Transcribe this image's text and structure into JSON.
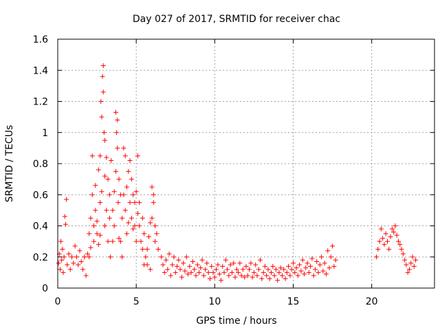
{
  "chart_data": {
    "type": "scatter",
    "title": "Day 027 of 2017, SRMTID for receiver chac",
    "xlabel": "GPS time / hours",
    "ylabel": "SRMTID / TECUs",
    "xlim": [
      0,
      24
    ],
    "ylim": [
      0,
      1.6
    ],
    "grid": true,
    "marker": "+",
    "color": "#ff0000",
    "xticks": [
      0,
      5,
      10,
      15,
      20
    ],
    "yticks": [
      0,
      0.2,
      0.4,
      0.6,
      0.8,
      1,
      1.2,
      1.4,
      1.6
    ],
    "xtick_labels": [
      "0",
      "5",
      "10",
      "15",
      "20"
    ],
    "ytick_labels": [
      "0",
      "0.2",
      "0.4",
      "0.6",
      "0.8",
      "1",
      "1.2",
      "1.4",
      "1.6"
    ],
    "series": [
      {
        "name": "SRMTID",
        "points": [
          [
            0.05,
            0.16
          ],
          [
            0.1,
            0.22
          ],
          [
            0.15,
            0.12
          ],
          [
            0.2,
            0.3
          ],
          [
            0.25,
            0.18
          ],
          [
            0.3,
            0.25
          ],
          [
            0.35,
            0.1
          ],
          [
            0.4,
            0.2
          ],
          [
            0.45,
            0.46
          ],
          [
            0.5,
            0.41
          ],
          [
            0.55,
            0.57
          ],
          [
            0.6,
            0.15
          ],
          [
            0.7,
            0.22
          ],
          [
            0.8,
            0.12
          ],
          [
            0.9,
            0.2
          ],
          [
            1.0,
            0.16
          ],
          [
            1.1,
            0.27
          ],
          [
            1.2,
            0.2
          ],
          [
            1.3,
            0.15
          ],
          [
            1.4,
            0.24
          ],
          [
            1.5,
            0.17
          ],
          [
            1.6,
            0.12
          ],
          [
            1.7,
            0.2
          ],
          [
            1.8,
            0.08
          ],
          [
            1.9,
            0.22
          ],
          [
            2.0,
            0.2
          ],
          [
            2.0,
            0.35
          ],
          [
            2.1,
            0.45
          ],
          [
            2.1,
            0.26
          ],
          [
            2.2,
            0.6
          ],
          [
            2.2,
            0.85
          ],
          [
            2.3,
            0.4
          ],
          [
            2.3,
            0.3
          ],
          [
            2.4,
            0.5
          ],
          [
            2.4,
            0.66
          ],
          [
            2.5,
            0.35
          ],
          [
            2.5,
            0.43
          ],
          [
            2.6,
            0.76
          ],
          [
            2.6,
            0.28
          ],
          [
            2.7,
            0.85
          ],
          [
            2.7,
            0.55
          ],
          [
            2.7,
            0.34
          ],
          [
            2.75,
            1.2
          ],
          [
            2.8,
            1.1
          ],
          [
            2.8,
            0.62
          ],
          [
            2.85,
            1.36
          ],
          [
            2.9,
            1.43
          ],
          [
            2.9,
            1.26
          ],
          [
            2.95,
            1.0
          ],
          [
            3.0,
            0.95
          ],
          [
            3.0,
            0.72
          ],
          [
            3.0,
            0.4
          ],
          [
            3.1,
            0.84
          ],
          [
            3.1,
            0.5
          ],
          [
            3.2,
            0.7
          ],
          [
            3.2,
            0.3
          ],
          [
            3.3,
            0.45
          ],
          [
            3.3,
            0.6
          ],
          [
            3.35,
            0.2
          ],
          [
            3.4,
            0.82
          ],
          [
            3.5,
            0.5
          ],
          [
            3.5,
            0.3
          ],
          [
            3.6,
            0.62
          ],
          [
            3.6,
            0.4
          ],
          [
            3.7,
            1.13
          ],
          [
            3.7,
            0.75
          ],
          [
            3.75,
            1.0
          ],
          [
            3.8,
            1.08
          ],
          [
            3.8,
            0.9
          ],
          [
            3.85,
            0.55
          ],
          [
            3.9,
            0.7
          ],
          [
            3.9,
            0.32
          ],
          [
            4.0,
            0.3
          ],
          [
            4.0,
            0.6
          ],
          [
            4.1,
            0.45
          ],
          [
            4.1,
            0.2
          ],
          [
            4.2,
            0.6
          ],
          [
            4.2,
            0.9
          ],
          [
            4.3,
            0.85
          ],
          [
            4.3,
            0.5
          ],
          [
            4.4,
            0.65
          ],
          [
            4.4,
            0.35
          ],
          [
            4.5,
            0.75
          ],
          [
            4.5,
            0.42
          ],
          [
            4.6,
            0.82
          ],
          [
            4.6,
            0.55
          ],
          [
            4.7,
            0.7
          ],
          [
            4.7,
            0.45
          ],
          [
            4.8,
            0.38
          ],
          [
            4.8,
            0.6
          ],
          [
            4.9,
            0.55
          ],
          [
            4.9,
            0.4
          ],
          [
            5.0,
            0.3
          ],
          [
            5.0,
            0.62
          ],
          [
            5.1,
            0.48
          ],
          [
            5.1,
            0.85
          ],
          [
            5.2,
            0.4
          ],
          [
            5.2,
            0.55
          ],
          [
            5.3,
            0.3
          ],
          [
            5.4,
            0.45
          ],
          [
            5.4,
            0.25
          ],
          [
            5.5,
            0.35
          ],
          [
            5.5,
            0.15
          ],
          [
            5.6,
            0.2
          ],
          [
            5.7,
            0.25
          ],
          [
            5.7,
            0.15
          ],
          [
            5.8,
            0.33
          ],
          [
            5.9,
            0.12
          ],
          [
            5.9,
            0.42
          ],
          [
            6.0,
            0.45
          ],
          [
            6.0,
            0.65
          ],
          [
            6.1,
            0.55
          ],
          [
            6.1,
            0.6
          ],
          [
            6.2,
            0.4
          ],
          [
            6.2,
            0.3
          ],
          [
            6.3,
            0.35
          ],
          [
            6.4,
            0.25
          ],
          [
            6.6,
            0.2
          ],
          [
            6.7,
            0.15
          ],
          [
            6.8,
            0.1
          ],
          [
            6.9,
            0.18
          ],
          [
            7.0,
            0.12
          ],
          [
            7.1,
            0.22
          ],
          [
            7.2,
            0.08
          ],
          [
            7.3,
            0.15
          ],
          [
            7.4,
            0.2
          ],
          [
            7.5,
            0.1
          ],
          [
            7.6,
            0.14
          ],
          [
            7.7,
            0.18
          ],
          [
            7.8,
            0.12
          ],
          [
            7.9,
            0.07
          ],
          [
            8.0,
            0.16
          ],
          [
            8.1,
            0.11
          ],
          [
            8.2,
            0.2
          ],
          [
            8.3,
            0.09
          ],
          [
            8.4,
            0.14
          ],
          [
            8.5,
            0.1
          ],
          [
            8.6,
            0.17
          ],
          [
            8.7,
            0.12
          ],
          [
            8.8,
            0.08
          ],
          [
            8.9,
            0.15
          ],
          [
            9.0,
            0.1
          ],
          [
            9.1,
            0.13
          ],
          [
            9.2,
            0.18
          ],
          [
            9.3,
            0.08
          ],
          [
            9.4,
            0.12
          ],
          [
            9.5,
            0.16
          ],
          [
            9.6,
            0.1
          ],
          [
            9.7,
            0.06
          ],
          [
            9.8,
            0.14
          ],
          [
            9.9,
            0.1
          ],
          [
            10.0,
            0.07
          ],
          [
            10.1,
            0.12
          ],
          [
            10.2,
            0.15
          ],
          [
            10.3,
            0.09
          ],
          [
            10.4,
            0.05
          ],
          [
            10.5,
            0.14
          ],
          [
            10.6,
            0.1
          ],
          [
            10.7,
            0.18
          ],
          [
            10.8,
            0.12
          ],
          [
            10.9,
            0.08
          ],
          [
            11.0,
            0.15
          ],
          [
            11.1,
            0.1
          ],
          [
            11.2,
            0.16
          ],
          [
            11.3,
            0.07
          ],
          [
            11.4,
            0.12
          ],
          [
            11.5,
            0.1
          ],
          [
            11.6,
            0.16
          ],
          [
            11.7,
            0.08
          ],
          [
            11.8,
            0.12
          ],
          [
            11.9,
            0.07
          ],
          [
            12.0,
            0.14
          ],
          [
            12.1,
            0.08
          ],
          [
            12.2,
            0.12
          ],
          [
            12.3,
            0.16
          ],
          [
            12.4,
            0.07
          ],
          [
            12.5,
            0.1
          ],
          [
            12.6,
            0.15
          ],
          [
            12.7,
            0.08
          ],
          [
            12.8,
            0.12
          ],
          [
            12.9,
            0.18
          ],
          [
            13.0,
            0.06
          ],
          [
            13.1,
            0.1
          ],
          [
            13.2,
            0.14
          ],
          [
            13.3,
            0.08
          ],
          [
            13.4,
            0.12
          ],
          [
            13.5,
            0.06
          ],
          [
            13.6,
            0.1
          ],
          [
            13.7,
            0.14
          ],
          [
            13.8,
            0.08
          ],
          [
            13.9,
            0.12
          ],
          [
            14.0,
            0.05
          ],
          [
            14.1,
            0.1
          ],
          [
            14.2,
            0.13
          ],
          [
            14.3,
            0.08
          ],
          [
            14.4,
            0.12
          ],
          [
            14.5,
            0.06
          ],
          [
            14.6,
            0.1
          ],
          [
            14.7,
            0.14
          ],
          [
            14.8,
            0.08
          ],
          [
            14.9,
            0.12
          ],
          [
            15.0,
            0.16
          ],
          [
            15.1,
            0.1
          ],
          [
            15.2,
            0.13
          ],
          [
            15.3,
            0.08
          ],
          [
            15.4,
            0.15
          ],
          [
            15.5,
            0.11
          ],
          [
            15.6,
            0.18
          ],
          [
            15.7,
            0.09
          ],
          [
            15.8,
            0.13
          ],
          [
            15.9,
            0.16
          ],
          [
            16.0,
            0.1
          ],
          [
            16.1,
            0.14
          ],
          [
            16.2,
            0.19
          ],
          [
            16.3,
            0.08
          ],
          [
            16.4,
            0.12
          ],
          [
            16.5,
            0.17
          ],
          [
            16.6,
            0.1
          ],
          [
            16.7,
            0.15
          ],
          [
            16.8,
            0.2
          ],
          [
            16.9,
            0.11
          ],
          [
            17.0,
            0.16
          ],
          [
            17.1,
            0.09
          ],
          [
            17.2,
            0.24
          ],
          [
            17.3,
            0.13
          ],
          [
            17.4,
            0.2
          ],
          [
            17.5,
            0.27
          ],
          [
            17.6,
            0.14
          ],
          [
            17.7,
            0.18
          ],
          [
            20.3,
            0.2
          ],
          [
            20.4,
            0.25
          ],
          [
            20.5,
            0.3
          ],
          [
            20.6,
            0.38
          ],
          [
            20.7,
            0.32
          ],
          [
            20.8,
            0.28
          ],
          [
            20.9,
            0.35
          ],
          [
            21.0,
            0.3
          ],
          [
            21.1,
            0.25
          ],
          [
            21.2,
            0.33
          ],
          [
            21.3,
            0.38
          ],
          [
            21.4,
            0.36
          ],
          [
            21.5,
            0.4
          ],
          [
            21.6,
            0.34
          ],
          [
            21.7,
            0.3
          ],
          [
            21.8,
            0.28
          ],
          [
            21.9,
            0.25
          ],
          [
            22.0,
            0.22
          ],
          [
            22.1,
            0.18
          ],
          [
            22.2,
            0.15
          ],
          [
            22.3,
            0.1
          ],
          [
            22.4,
            0.12
          ],
          [
            22.5,
            0.16
          ],
          [
            22.6,
            0.2
          ],
          [
            22.7,
            0.14
          ],
          [
            22.8,
            0.18
          ]
        ]
      }
    ]
  }
}
